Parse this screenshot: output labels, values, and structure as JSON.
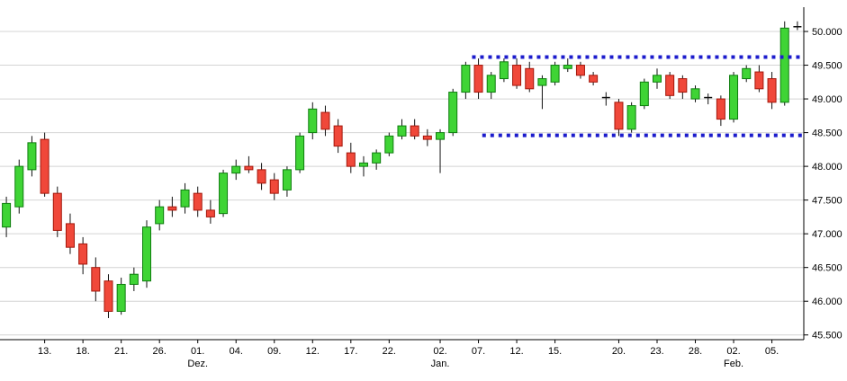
{
  "chart_data": {
    "type": "candlestick",
    "title": "",
    "xlabel": "",
    "ylabel": "",
    "ylim": [
      45.43,
      50.36
    ],
    "grid": true,
    "y_axis": {
      "side": "right",
      "ticks": [
        45.5,
        46.0,
        46.5,
        47.0,
        47.5,
        48.0,
        48.5,
        49.0,
        49.5,
        50.0
      ],
      "tick_labels": [
        "45.500",
        "46.000",
        "46.500",
        "47.000",
        "47.500",
        "48.000",
        "48.500",
        "49.000",
        "49.500",
        "50.000"
      ]
    },
    "x_axis": {
      "ticks": [
        {
          "i": 3,
          "label": "13."
        },
        {
          "i": 6,
          "label": "18."
        },
        {
          "i": 9,
          "label": "21."
        },
        {
          "i": 12,
          "label": "26."
        },
        {
          "i": 15,
          "label": "01.",
          "month": "Dez."
        },
        {
          "i": 18,
          "label": "04."
        },
        {
          "i": 21,
          "label": "09."
        },
        {
          "i": 24,
          "label": "12."
        },
        {
          "i": 27,
          "label": "17."
        },
        {
          "i": 30,
          "label": "22."
        },
        {
          "i": 34,
          "label": "02.",
          "month": "Jan."
        },
        {
          "i": 37,
          "label": "07."
        },
        {
          "i": 40,
          "label": "12."
        },
        {
          "i": 43,
          "label": "15."
        },
        {
          "i": 48,
          "label": "20."
        },
        {
          "i": 51,
          "label": "23."
        },
        {
          "i": 54,
          "label": "28."
        },
        {
          "i": 57,
          "label": "02.",
          "month": "Feb."
        },
        {
          "i": 60,
          "label": "05."
        }
      ]
    },
    "candles": [
      {
        "o": 47.1,
        "h": 47.55,
        "l": 46.95,
        "c": 47.45
      },
      {
        "o": 47.4,
        "h": 48.1,
        "l": 47.3,
        "c": 48.0
      },
      {
        "o": 47.95,
        "h": 48.45,
        "l": 47.85,
        "c": 48.35
      },
      {
        "o": 48.4,
        "h": 48.5,
        "l": 47.55,
        "c": 47.6
      },
      {
        "o": 47.6,
        "h": 47.7,
        "l": 46.95,
        "c": 47.05
      },
      {
        "o": 47.15,
        "h": 47.3,
        "l": 46.7,
        "c": 46.8
      },
      {
        "o": 46.85,
        "h": 46.95,
        "l": 46.4,
        "c": 46.55
      },
      {
        "o": 46.5,
        "h": 46.65,
        "l": 46.0,
        "c": 46.15
      },
      {
        "o": 46.3,
        "h": 46.4,
        "l": 45.75,
        "c": 45.85
      },
      {
        "o": 45.85,
        "h": 46.35,
        "l": 45.8,
        "c": 46.25
      },
      {
        "o": 46.25,
        "h": 46.5,
        "l": 46.15,
        "c": 46.4
      },
      {
        "o": 46.3,
        "h": 47.2,
        "l": 46.2,
        "c": 47.1
      },
      {
        "o": 47.15,
        "h": 47.5,
        "l": 47.05,
        "c": 47.4
      },
      {
        "o": 47.4,
        "h": 47.55,
        "l": 47.25,
        "c": 47.35
      },
      {
        "o": 47.4,
        "h": 47.75,
        "l": 47.3,
        "c": 47.65
      },
      {
        "o": 47.6,
        "h": 47.7,
        "l": 47.25,
        "c": 47.35
      },
      {
        "o": 47.35,
        "h": 47.5,
        "l": 47.15,
        "c": 47.25
      },
      {
        "o": 47.3,
        "h": 47.95,
        "l": 47.25,
        "c": 47.9
      },
      {
        "o": 47.9,
        "h": 48.1,
        "l": 47.8,
        "c": 48.0
      },
      {
        "o": 48.0,
        "h": 48.15,
        "l": 47.9,
        "c": 47.95
      },
      {
        "o": 47.95,
        "h": 48.05,
        "l": 47.65,
        "c": 47.75
      },
      {
        "o": 47.8,
        "h": 47.9,
        "l": 47.5,
        "c": 47.6
      },
      {
        "o": 47.65,
        "h": 48.0,
        "l": 47.55,
        "c": 47.95
      },
      {
        "o": 47.95,
        "h": 48.5,
        "l": 47.9,
        "c": 48.45
      },
      {
        "o": 48.5,
        "h": 48.95,
        "l": 48.4,
        "c": 48.85
      },
      {
        "o": 48.8,
        "h": 48.9,
        "l": 48.45,
        "c": 48.55
      },
      {
        "o": 48.6,
        "h": 48.7,
        "l": 48.2,
        "c": 48.3
      },
      {
        "o": 48.2,
        "h": 48.35,
        "l": 47.9,
        "c": 48.0
      },
      {
        "o": 48.0,
        "h": 48.15,
        "l": 47.85,
        "c": 48.05
      },
      {
        "o": 48.05,
        "h": 48.25,
        "l": 47.95,
        "c": 48.2
      },
      {
        "o": 48.2,
        "h": 48.5,
        "l": 48.15,
        "c": 48.45
      },
      {
        "o": 48.45,
        "h": 48.7,
        "l": 48.4,
        "c": 48.6
      },
      {
        "o": 48.6,
        "h": 48.7,
        "l": 48.4,
        "c": 48.45
      },
      {
        "o": 48.45,
        "h": 48.55,
        "l": 48.3,
        "c": 48.4
      },
      {
        "o": 48.4,
        "h": 48.55,
        "l": 47.9,
        "c": 48.5
      },
      {
        "o": 48.5,
        "h": 49.15,
        "l": 48.45,
        "c": 49.1
      },
      {
        "o": 49.1,
        "h": 49.55,
        "l": 49.0,
        "c": 49.5
      },
      {
        "o": 49.5,
        "h": 49.6,
        "l": 49.0,
        "c": 49.1
      },
      {
        "o": 49.1,
        "h": 49.4,
        "l": 49.0,
        "c": 49.35
      },
      {
        "o": 49.3,
        "h": 49.6,
        "l": 49.25,
        "c": 49.55
      },
      {
        "o": 49.5,
        "h": 49.6,
        "l": 49.15,
        "c": 49.2
      },
      {
        "o": 49.45,
        "h": 49.55,
        "l": 49.1,
        "c": 49.15
      },
      {
        "o": 49.2,
        "h": 49.35,
        "l": 48.85,
        "c": 49.3
      },
      {
        "o": 49.25,
        "h": 49.55,
        "l": 49.2,
        "c": 49.5
      },
      {
        "o": 49.45,
        "h": 49.6,
        "l": 49.4,
        "c": 49.5
      },
      {
        "o": 49.5,
        "h": 49.55,
        "l": 49.3,
        "c": 49.35
      },
      {
        "o": 49.35,
        "h": 49.4,
        "l": 49.2,
        "c": 49.25
      },
      {
        "o": 49.0,
        "h": 49.1,
        "l": 48.9,
        "c": 49.02
      },
      {
        "o": 48.95,
        "h": 49.0,
        "l": 48.45,
        "c": 48.55
      },
      {
        "o": 48.55,
        "h": 48.95,
        "l": 48.5,
        "c": 48.9
      },
      {
        "o": 48.9,
        "h": 49.3,
        "l": 48.85,
        "c": 49.25
      },
      {
        "o": 49.25,
        "h": 49.45,
        "l": 49.15,
        "c": 49.35
      },
      {
        "o": 49.35,
        "h": 49.4,
        "l": 49.0,
        "c": 49.05
      },
      {
        "o": 49.3,
        "h": 49.35,
        "l": 49.0,
        "c": 49.1
      },
      {
        "o": 49.0,
        "h": 49.2,
        "l": 48.95,
        "c": 49.15
      },
      {
        "o": 49.0,
        "h": 49.08,
        "l": 48.92,
        "c": 49.02
      },
      {
        "o": 49.0,
        "h": 49.05,
        "l": 48.6,
        "c": 48.7
      },
      {
        "o": 48.7,
        "h": 49.4,
        "l": 48.65,
        "c": 49.35
      },
      {
        "o": 49.3,
        "h": 49.5,
        "l": 49.25,
        "c": 49.45
      },
      {
        "o": 49.4,
        "h": 49.5,
        "l": 49.1,
        "c": 49.15
      },
      {
        "o": 49.3,
        "h": 49.4,
        "l": 48.85,
        "c": 48.95
      },
      {
        "o": 48.95,
        "h": 50.15,
        "l": 48.9,
        "c": 50.05
      },
      {
        "o": 50.05,
        "h": 50.15,
        "l": 50.02,
        "c": 50.07
      }
    ],
    "range_box": {
      "top": 49.62,
      "bottom": 48.46,
      "top_start_index": 37.0,
      "bottom_start_index": 37.8,
      "end_index": 63,
      "style": "dotted",
      "color": "#1c1ccc"
    },
    "colors": {
      "up_fill": "#3fd435",
      "up_border": "#0e7d0e",
      "down_fill": "#f0483a",
      "down_border": "#a3170b",
      "wick": "#111111",
      "grid": "#d4d4d4",
      "axis": "#000000",
      "background": "#ffffff",
      "range_line": "#1c1ccc"
    }
  }
}
